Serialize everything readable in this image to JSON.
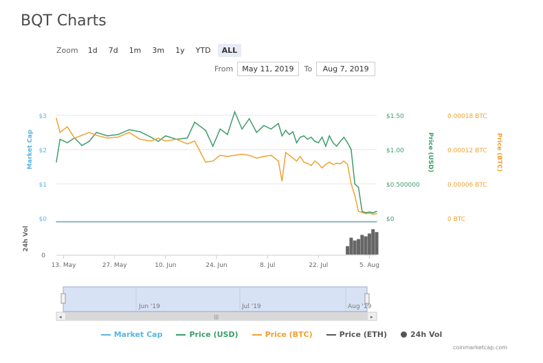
{
  "page": {
    "title": "BQT Charts",
    "zoom_label": "Zoom",
    "zoom_options": [
      "1d",
      "7d",
      "1m",
      "3m",
      "1y",
      "YTD",
      "ALL"
    ],
    "zoom_selected": "ALL",
    "from_label": "From",
    "from_value": "May 11, 2019",
    "to_label": "To",
    "to_value": "Aug 7, 2019",
    "credit": "coinmarketcap.com"
  },
  "legend": [
    {
      "label": "Market Cap",
      "color": "#5ab4e5",
      "symbol": "line"
    },
    {
      "label": "Price (USD)",
      "color": "#3c9b6a",
      "symbol": "line"
    },
    {
      "label": "Price (BTC)",
      "color": "#f0a030",
      "symbol": "line"
    },
    {
      "label": "Price (ETH)",
      "color": "#555555",
      "symbol": "line"
    },
    {
      "label": "24h Vol",
      "color": "#555555",
      "symbol": "dot"
    }
  ],
  "chart_data": {
    "type": "line",
    "x_ticks": [
      "13. May",
      "27. May",
      "10. Jun",
      "24. Jun",
      "8. Jul",
      "22. Jul",
      "5. Aug"
    ],
    "navigator_ticks": [
      "Jun '19",
      "Jul '19",
      "Aug '19"
    ],
    "axes": {
      "market_cap": {
        "label": "Market Cap",
        "ticks": [
          "$0",
          "$1",
          "$2",
          "$3"
        ],
        "color": "#5ab4e5"
      },
      "price_usd": {
        "label": "Price (USD)",
        "ticks": [
          "$0",
          "$0.500000",
          "$1.00",
          "$1.50"
        ],
        "color": "#3c9b6a",
        "ylim": [
          0,
          1.5
        ]
      },
      "price_btc": {
        "label": "Price (BTC)",
        "ticks": [
          "0 BTC",
          "0.00006 BTC",
          "0.00012 BTC",
          "0.00018 BTC"
        ],
        "color": "#f0a030",
        "ylim": [
          0,
          0.00018
        ]
      },
      "volume": {
        "label": "24h Vol",
        "ticks": [
          "0"
        ]
      }
    },
    "series": [
      {
        "name": "Price (USD)",
        "color": "#3c9b6a",
        "x_days": [
          0,
          1,
          3,
          5,
          7,
          9,
          11,
          14,
          17,
          20,
          23,
          26,
          28,
          30,
          33,
          36,
          38,
          41,
          43,
          45,
          47,
          49,
          51,
          53,
          55,
          57,
          59,
          61,
          62,
          63,
          64,
          65,
          66,
          67,
          68,
          69,
          70,
          71,
          72,
          73,
          74,
          75,
          76,
          77,
          78,
          79,
          80,
          81,
          82,
          83,
          84,
          85,
          86,
          87,
          88
        ],
        "values": [
          0.82,
          1.15,
          1.1,
          1.17,
          1.06,
          1.12,
          1.25,
          1.2,
          1.22,
          1.29,
          1.26,
          1.18,
          1.12,
          1.2,
          1.15,
          1.17,
          1.4,
          1.28,
          1.05,
          1.3,
          1.22,
          1.55,
          1.3,
          1.45,
          1.25,
          1.35,
          1.3,
          1.38,
          1.2,
          1.28,
          1.22,
          1.26,
          1.1,
          1.18,
          1.2,
          1.15,
          1.18,
          1.12,
          1.1,
          1.18,
          1.05,
          1.2,
          1.1,
          1.05,
          1.12,
          1.18,
          1.1,
          1.0,
          0.5,
          0.45,
          0.1,
          0.08,
          0.09,
          0.08,
          0.1
        ]
      },
      {
        "name": "Price (BTC)",
        "color": "#f0a030",
        "x_days": [
          0,
          1,
          3,
          5,
          7,
          9,
          11,
          14,
          17,
          20,
          23,
          26,
          28,
          30,
          33,
          36,
          38,
          41,
          43,
          45,
          47,
          49,
          51,
          53,
          55,
          57,
          59,
          61,
          62,
          63,
          64,
          65,
          66,
          67,
          68,
          69,
          70,
          71,
          72,
          73,
          74,
          75,
          76,
          77,
          78,
          79,
          80,
          81,
          82,
          83,
          84,
          85,
          86,
          87,
          88
        ],
        "values": [
          0.000175,
          0.00015,
          0.00016,
          0.00014,
          0.000145,
          0.00015,
          0.000145,
          0.00014,
          0.000142,
          0.00015,
          0.000138,
          0.000135,
          0.00014,
          0.000135,
          0.000138,
          0.00013,
          0.000135,
          9.8e-05,
          0.0001,
          0.00011,
          0.000108,
          0.00011,
          0.000112,
          0.00011,
          0.000105,
          0.000108,
          0.00011,
          0.0001,
          6.5e-05,
          0.000115,
          0.00011,
          0.000105,
          0.0001,
          0.000108,
          9.8e-05,
          9.6e-05,
          9.2e-05,
          0.0001,
          9.5e-05,
          8.8e-05,
          9.4e-05,
          9.8e-05,
          9.4e-05,
          9.6e-05,
          9.5e-05,
          0.0001,
          9.4e-05,
          6e-05,
          4e-05,
          1.2e-05,
          1e-05,
          8e-06,
          9e-06,
          7e-06,
          8e-06
        ]
      },
      {
        "name": "Market Cap",
        "color": "#5ab4e5",
        "x_days": [
          0,
          88
        ],
        "values": [
          0,
          0
        ]
      }
    ],
    "volume": {
      "x_days": [
        80,
        81,
        82,
        83,
        84,
        85,
        86,
        87,
        88
      ],
      "values": [
        0.3,
        0.6,
        0.5,
        0.55,
        0.7,
        0.65,
        0.75,
        0.9,
        0.8
      ]
    },
    "grid": true,
    "legend_position": "bottom"
  }
}
